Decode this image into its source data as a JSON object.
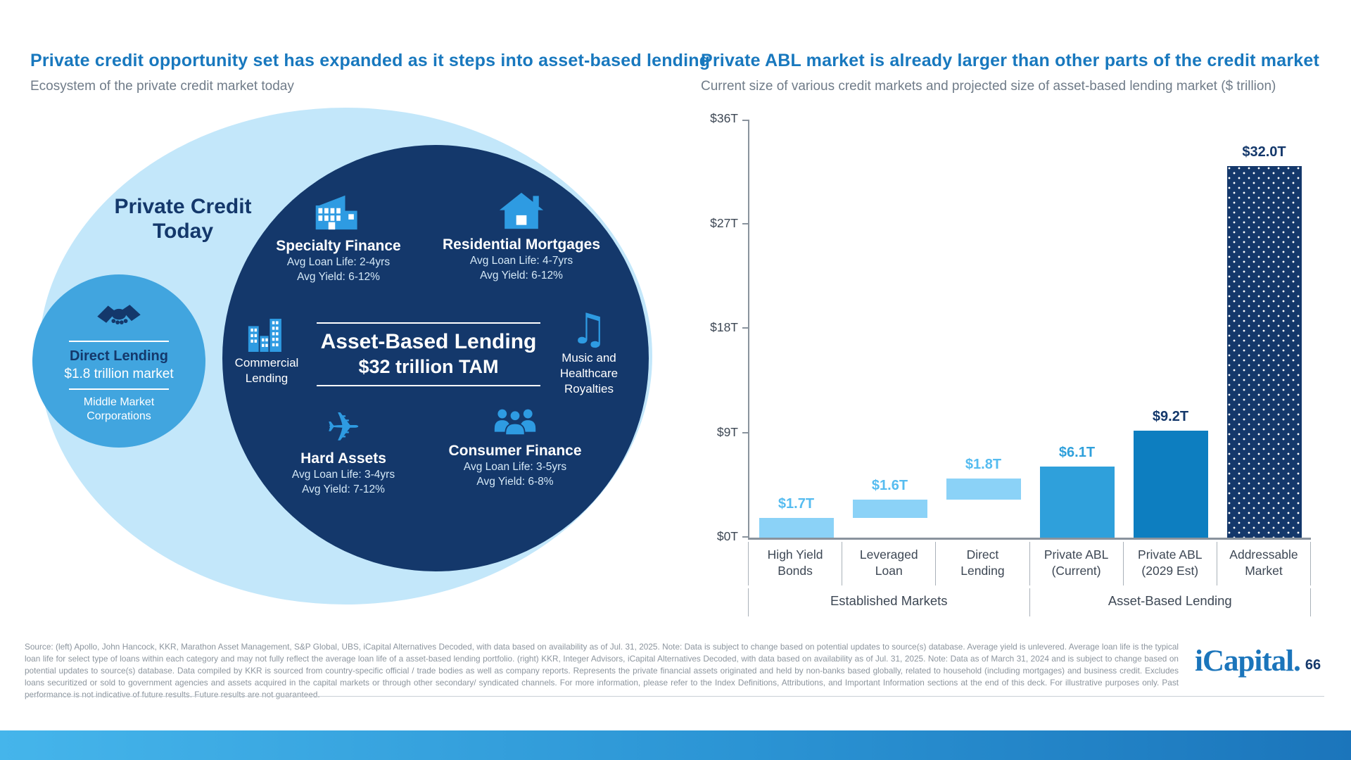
{
  "slide": {
    "left": {
      "title": "Private credit opportunity set has expanded as it steps into asset-based lending",
      "subtitle": "Ecosystem of the private credit market today",
      "ecosystem_label": "Private Credit Today",
      "direct_lending": {
        "name": "Direct Lending",
        "size": "$1.8 trillion market",
        "borrower_line1": "Middle Market",
        "borrower_line2": "Corporations"
      },
      "abl_core": {
        "name": "Asset-Based Lending",
        "tam": "$32 trillion TAM"
      },
      "segments": {
        "specialty_finance": {
          "name": "Specialty Finance",
          "loan_life": "Avg Loan Life: 2-4yrs",
          "avg_yield": "Avg Yield: 6-12%"
        },
        "residential_mortgages": {
          "name": "Residential Mortgages",
          "loan_life": "Avg Loan Life: 4-7yrs",
          "avg_yield": "Avg Yield: 6-12%"
        },
        "commercial_lending": {
          "line1": "Commercial",
          "line2": "Lending"
        },
        "music_royalties": {
          "line1": "Music and",
          "line2": "Healthcare",
          "line3": "Royalties"
        },
        "hard_assets": {
          "name": "Hard Assets",
          "loan_life": "Avg Loan Life: 3-4yrs",
          "avg_yield": "Avg Yield: 7-12%"
        },
        "consumer_finance": {
          "name": "Consumer Finance",
          "loan_life": "Avg Loan Life: 3-5yrs",
          "avg_yield": "Avg Yield: 6-8%"
        }
      },
      "glyphs": {
        "music_note": "♫",
        "airplane": "✈"
      }
    },
    "right": {
      "title": "Private ABL market is already larger than other parts of the credit market",
      "subtitle": "Current size of various credit markets and projected size of asset-based lending market ($ trillion)"
    },
    "footer": {
      "source": "Source: (left) Apollo, John Hancock, KKR, Marathon Asset Management, S&P Global, UBS, iCapital Alternatives Decoded, with data based on availability as of Jul. 31, 2025. Note: Data is subject to change based on potential updates to source(s) database. Average yield is unlevered. Average loan life is the typical loan life for select type of loans within each category and may not fully reflect the average loan life of a asset-based lending portfolio. (right) KKR, Integer Advisors, iCapital Alternatives Decoded, with data based on availability as of Jul. 31, 2025. Note: Data as of March 31, 2024 and is subject to change based on potential updates to source(s) database. Data compiled by KKR is sourced from country-specific official / trade bodies as well as company reports. Represents the private financial assets originated and held by non-banks based globally, related to household (including mortgages) and business credit. Excludes loans securitized or sold to government agencies and assets acquired in the capital markets or through other secondary/ syndicated channels. For more information, please refer to the Index Definitions, Attributions, and Important Information sections at the end of this deck. For illustrative purposes only. Past performance is not indicative of future results. Future results are not guaranteed.",
      "brand": "iCapital.",
      "page_number": "66"
    }
  },
  "chart_data": {
    "type": "bar",
    "subtype": "waterfall-comparison",
    "title": "Private ABL market is already larger than other parts of the credit market",
    "subtitle": "Current size of various credit markets and projected size of asset-based lending market ($ trillion)",
    "unit": "$ trillion",
    "ylim": [
      0,
      36
    ],
    "grid": false,
    "y_ticks": [
      {
        "label": "$0T",
        "value": 0
      },
      {
        "label": "$9T",
        "value": 9
      },
      {
        "label": "$18T",
        "value": 18
      },
      {
        "label": "$27T",
        "value": 27
      },
      {
        "label": "$36T",
        "value": 36
      }
    ],
    "bars": [
      {
        "category_line1": "High Yield",
        "category_line2": "Bonds",
        "value": 1.7,
        "start": 0,
        "display": "$1.7T",
        "style": "light"
      },
      {
        "category_line1": "Leveraged",
        "category_line2": "Loan",
        "value": 1.6,
        "start": 1.7,
        "display": "$1.6T",
        "style": "light"
      },
      {
        "category_line1": "Direct",
        "category_line2": "Lending",
        "value": 1.8,
        "start": 3.3,
        "display": "$1.8T",
        "style": "light"
      },
      {
        "category_line1": "Private ABL",
        "category_line2": "(Current)",
        "value": 6.1,
        "start": 0,
        "display": "$6.1T",
        "style": "medium"
      },
      {
        "category_line1": "Private ABL",
        "category_line2": "(2029 Est)",
        "value": 9.2,
        "start": 0,
        "display": "$9.2T",
        "style": "dark"
      },
      {
        "category_line1": "Addressable",
        "category_line2": "Market",
        "value": 32.0,
        "start": 0,
        "display": "$32.0T",
        "style": "navy-dotted"
      }
    ],
    "groups": [
      {
        "label": "Established Markets",
        "columns": 3
      },
      {
        "label": "Asset-Based Lending",
        "columns": 3
      }
    ],
    "colors": {
      "light_bar": "#8BD2F7",
      "medium_bar": "#2FA0DB",
      "dark_bar": "#0D7EC0",
      "navy": "#14386B",
      "light_label": "#56BCF0",
      "axis": "#8A939D",
      "text": "#3D4754"
    }
  },
  "theme": {
    "title_blue": "#1878BE",
    "subtitle_gray": "#707C89",
    "navy": "#14386B",
    "ellipse_light": "#C3E7FA",
    "circle_mid": "#41A5DF",
    "icon_blue": "#2E9BE2",
    "sub_text_light": "#D5E9F7",
    "footer_gray": "#8C959E"
  }
}
